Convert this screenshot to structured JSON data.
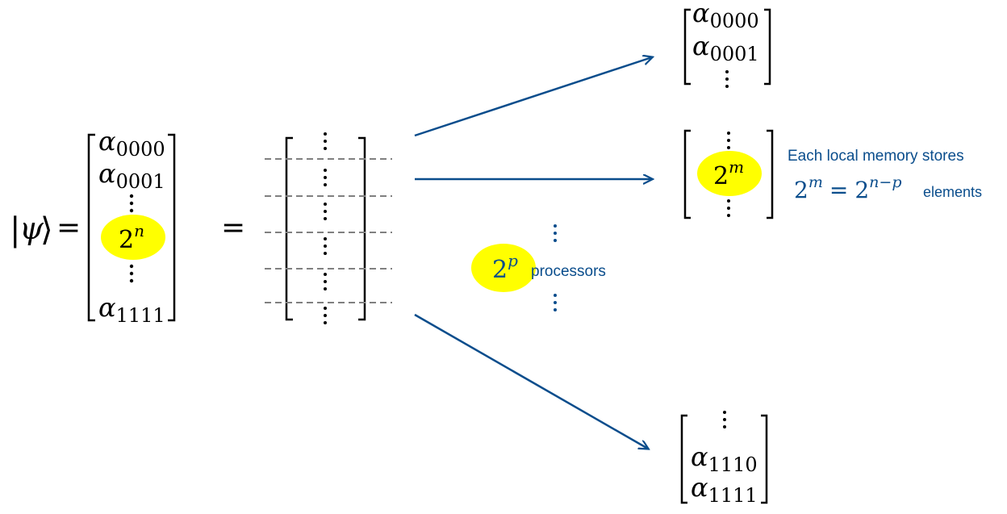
{
  "state": {
    "ket_open": "|",
    "ket_symbol": "ψ",
    "ket_close": "⟩",
    "equals": "="
  },
  "left_vector": {
    "entries": [
      {
        "base": "α",
        "sub": "0000"
      },
      {
        "base": "α",
        "sub": "0001"
      }
    ],
    "size_base": "2",
    "size_exp": "n",
    "last_entry": {
      "base": "α",
      "sub": "1111"
    }
  },
  "middle": {
    "equals": "=",
    "block_count": 5
  },
  "processors": {
    "base": "2",
    "exp": "p",
    "label": "processors"
  },
  "top_vector": {
    "entries": [
      {
        "base": "α",
        "sub": "0000"
      },
      {
        "base": "α",
        "sub": "0001"
      }
    ]
  },
  "mid_vector": {
    "size_base": "2",
    "size_exp": "m"
  },
  "bottom_vector": {
    "entries": [
      {
        "base": "α",
        "sub": "1110"
      },
      {
        "base": "α",
        "sub": "1111"
      }
    ]
  },
  "memory_note": {
    "line1": "Each local memory stores",
    "lhs_base": "2",
    "lhs_exp": "m",
    "equals": "=",
    "rhs_base": "2",
    "rhs_exp": "n−p",
    "suffix": "elements"
  },
  "colors": {
    "text": "#000000",
    "accent": "#0a4d8c",
    "highlight": "#ffff00",
    "dash": "#808080",
    "arrow": "#0a4d8c"
  }
}
